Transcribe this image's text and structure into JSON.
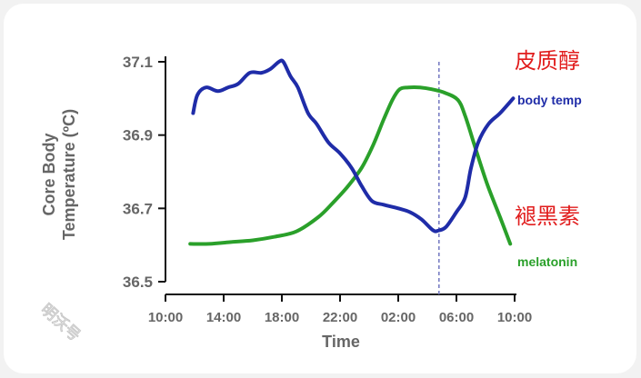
{
  "chart_data": {
    "type": "line",
    "title": "",
    "xlabel": "Time",
    "ylabel_line1": "Core Body",
    "ylabel_line2": "Temperature (ºC)",
    "x_ticks": [
      "10:00",
      "14:00",
      "18:00",
      "22:00",
      "02:00",
      "06:00",
      "10:00"
    ],
    "x_tick_hours": [
      0,
      4,
      8,
      12,
      16,
      20,
      24
    ],
    "xlim": [
      0,
      24
    ],
    "y_ticks": [
      "37.1",
      "36.9",
      "36.7",
      "36.5"
    ],
    "y_tick_values": [
      37.1,
      36.9,
      36.7,
      36.5
    ],
    "ylim": [
      36.5,
      37.1
    ],
    "grid": false,
    "reference_line_hour": 18.8,
    "series": [
      {
        "name": "body temp",
        "color": "#1f2ca8",
        "hours": [
          1.9,
          2.2,
          2.8,
          3.6,
          4.3,
          5.0,
          5.8,
          6.6,
          7.2,
          7.8,
          8.1,
          8.6,
          9.1,
          9.8,
          10.4,
          11.2,
          12.0,
          12.8,
          13.5,
          14.2,
          15.0,
          16.0,
          16.8,
          17.6,
          18.4,
          18.8,
          19.3,
          20.0,
          20.6,
          21.0,
          21.5,
          22.2,
          23.0,
          23.9
        ],
        "values": [
          36.96,
          37.01,
          37.03,
          37.02,
          37.03,
          37.04,
          37.07,
          37.07,
          37.08,
          37.1,
          37.1,
          37.06,
          37.03,
          36.96,
          36.93,
          36.88,
          36.85,
          36.81,
          36.76,
          36.72,
          36.71,
          36.7,
          36.69,
          36.67,
          36.64,
          36.64,
          36.65,
          36.69,
          36.73,
          36.81,
          36.88,
          36.93,
          36.96,
          37.0
        ]
      },
      {
        "name": "melatonin",
        "color": "#2aa02a",
        "hours": [
          1.7,
          3.0,
          4.5,
          6.0,
          7.5,
          9.0,
          10.5,
          11.5,
          12.5,
          13.5,
          14.3,
          15.0,
          15.6,
          16.1,
          16.7,
          17.5,
          18.3,
          19.2,
          20.1,
          20.6,
          21.3,
          22.1,
          23.0,
          23.7
        ],
        "relative_level": [
          0.12,
          0.12,
          0.13,
          0.14,
          0.16,
          0.19,
          0.27,
          0.35,
          0.44,
          0.55,
          0.68,
          0.82,
          0.93,
          0.99,
          1.0,
          1.0,
          0.99,
          0.97,
          0.93,
          0.84,
          0.66,
          0.46,
          0.27,
          0.12
        ]
      }
    ],
    "series_labels": {
      "body_temp": "body temp",
      "melatonin": "melatonin"
    },
    "annotations": {
      "cortisol": "皮质醇",
      "melatonin_cn": "褪黑素"
    }
  },
  "watermark": "明沃号",
  "colors": {
    "annotation": "#e11d1d",
    "axis": "#111111",
    "label_gray": "#666666",
    "reference_line": "#7a7fc4"
  }
}
